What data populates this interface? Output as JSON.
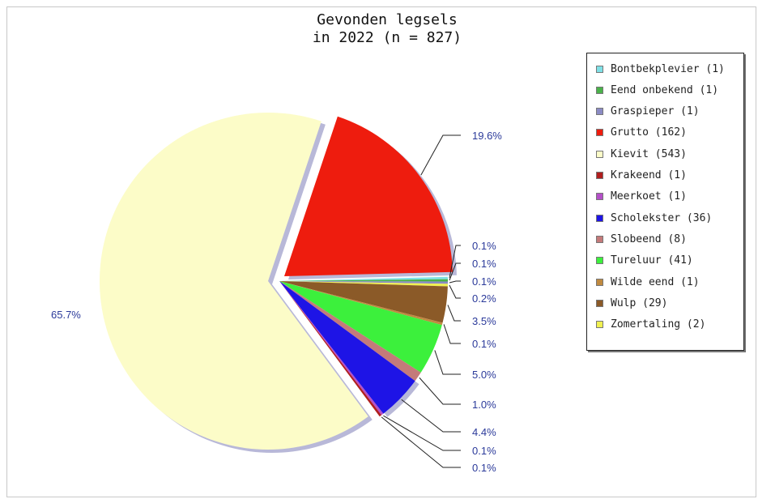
{
  "chart_data": {
    "type": "pie",
    "title": "Gevonden legsels",
    "subtitle": "in 2022 (n = 827)",
    "slices": [
      {
        "label": "Bontbekplevier",
        "count": 1,
        "percent": 0.1,
        "percent_label": "0.1%",
        "color": "#7fe0e6"
      },
      {
        "label": "Eend onbekend",
        "count": 1,
        "percent": 0.1,
        "percent_label": "0.1%",
        "color": "#4ab24a"
      },
      {
        "label": "Graspieper",
        "count": 1,
        "percent": 0.1,
        "percent_label": "0.1%",
        "color": "#8b8bc4"
      },
      {
        "label": "Grutto",
        "count": 162,
        "percent": 19.6,
        "percent_label": "19.6%",
        "color": "#ee1c0e"
      },
      {
        "label": "Kievit",
        "count": 543,
        "percent": 65.7,
        "percent_label": "65.7%",
        "color": "#fcfcc8"
      },
      {
        "label": "Krakeend",
        "count": 1,
        "percent": 0.1,
        "percent_label": "0.1%",
        "color": "#b01e1e"
      },
      {
        "label": "Meerkoet",
        "count": 1,
        "percent": 0.1,
        "percent_label": "0.1%",
        "color": "#b44fc8"
      },
      {
        "label": "Scholekster",
        "count": 36,
        "percent": 4.4,
        "percent_label": "4.4%",
        "color": "#1e14e6"
      },
      {
        "label": "Slobeend",
        "count": 8,
        "percent": 1.0,
        "percent_label": "1.0%",
        "color": "#c47a7a"
      },
      {
        "label": "Tureluur",
        "count": 41,
        "percent": 5.0,
        "percent_label": "5.0%",
        "color": "#3cf03c"
      },
      {
        "label": "Wilde eend",
        "count": 1,
        "percent": 0.1,
        "percent_label": "0.1%",
        "color": "#c08a40"
      },
      {
        "label": "Wulp",
        "count": 29,
        "percent": 3.5,
        "percent_label": "3.5%",
        "color": "#8b5a28"
      },
      {
        "label": "Zomertaling",
        "count": 2,
        "percent": 0.2,
        "percent_label": "0.2%",
        "color": "#f0f050"
      }
    ],
    "legend": {
      "placement": "right",
      "entries": [
        "Bontbekplevier (1)",
        "Eend onbekend (1)",
        "Graspieper (1)",
        "Grutto (162)",
        "Kievit (543)",
        "Krakeend (1)",
        "Meerkoet (1)",
        "Scholekster (36)",
        "Slobeend (8)",
        "Tureluur (41)",
        "Wilde eend (1)",
        "Wulp (29)",
        "Zomertaling (2)"
      ]
    },
    "label_color": "#2b3a9a"
  }
}
